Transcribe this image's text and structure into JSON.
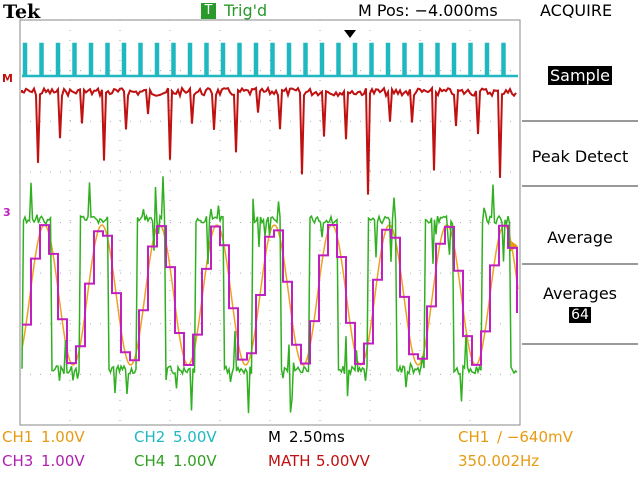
{
  "header": {
    "brand": "Tek",
    "trigger_icon": "T",
    "trigger_status": "Trig'd",
    "position": "M Pos: −4.000ms",
    "menu_title": "ACQUIRE"
  },
  "markers": {
    "math": "M",
    "ch3": "3"
  },
  "menu": {
    "items": [
      "Sample",
      "Peak Detect",
      "Average"
    ],
    "averages_label": "Averages",
    "averages_value": "64"
  },
  "status": {
    "row1": [
      {
        "channel": "CH1",
        "setting": "1.00V"
      },
      {
        "channel": "CH2",
        "setting": "5.00V"
      },
      {
        "channel": "M",
        "setting": "2.50ms"
      },
      {
        "channel": "CH1",
        "setting": "∕ −640mV"
      }
    ],
    "row2": [
      {
        "channel": "CH3",
        "setting": "1.00V"
      },
      {
        "channel": "CH4",
        "setting": "1.00V"
      },
      {
        "channel": "MATH",
        "setting": "5.00VV"
      },
      {
        "channel": "",
        "setting": "350.002Hz"
      }
    ]
  }
}
